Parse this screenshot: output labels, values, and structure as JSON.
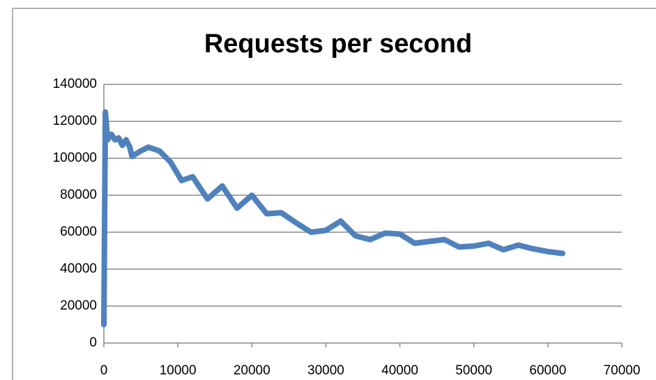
{
  "chart_data": {
    "type": "line",
    "title": "Requests per second",
    "x": [
      0,
      200,
      500,
      1000,
      1500,
      2000,
      2500,
      3000,
      3500,
      3800,
      5000,
      6000,
      7500,
      9000,
      10500,
      12000,
      14000,
      16000,
      18000,
      20000,
      22000,
      24000,
      26000,
      28000,
      30000,
      32000,
      34000,
      36000,
      38000,
      40000,
      42000,
      44000,
      46000,
      48000,
      50000,
      52000,
      54000,
      56000,
      58000,
      60000,
      62000
    ],
    "series": [
      {
        "name": "Requests per second",
        "color": "#4f81bd",
        "values": [
          10000,
          125000,
          110000,
          113000,
          110000,
          111000,
          107000,
          110000,
          106000,
          101000,
          104000,
          106000,
          104000,
          98000,
          88000,
          90000,
          78000,
          85000,
          73000,
          80000,
          70000,
          70500,
          65000,
          60000,
          61000,
          66000,
          58000,
          56000,
          59500,
          59000,
          54000,
          55000,
          56000,
          52000,
          52500,
          54000,
          50500,
          53000,
          51000,
          49500,
          48500
        ]
      }
    ],
    "xlim": [
      0,
      70000
    ],
    "xticks": [
      0,
      10000,
      20000,
      30000,
      40000,
      50000,
      60000,
      70000
    ],
    "ylim": [
      0,
      140000
    ],
    "yticks": [
      0,
      20000,
      40000,
      60000,
      80000,
      100000,
      120000,
      140000
    ],
    "grid": true
  }
}
